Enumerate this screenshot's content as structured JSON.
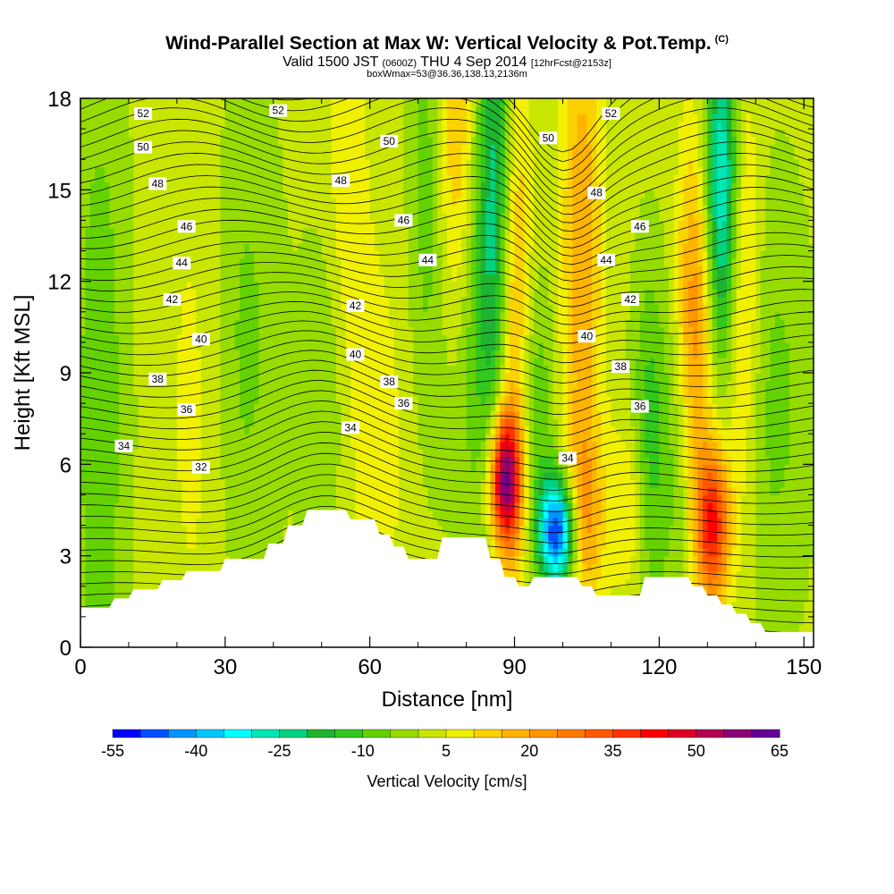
{
  "title": {
    "main": "Wind-Parallel Section at Max W: Vertical Velocity & Pot.Temp.",
    "copyright": "(C)",
    "valid_prefix": "Valid 1500 JST",
    "valid_utc": "(0600Z)",
    "valid_date": "THU 4 Sep 2014",
    "forecast": "[12hrFcst@2153z]",
    "box_info": "boxWmax=53@36.36,138.13,2136m"
  },
  "chart_data": {
    "type": "heatmap",
    "xlabel": "Distance [nm]",
    "ylabel": "Height [Kft MSL]",
    "xlim": [
      0,
      152
    ],
    "ylim": [
      0,
      18
    ],
    "x_ticks": [
      "0",
      "30",
      "60",
      "90",
      "120",
      "150"
    ],
    "y_ticks": [
      "0",
      "3",
      "6",
      "9",
      "12",
      "15",
      "18"
    ],
    "colorbar": {
      "label": "Vertical Velocity [cm/s]",
      "tick_labels": [
        "-55",
        "-40",
        "-25",
        "-10",
        "5",
        "20",
        "35",
        "50",
        "65"
      ],
      "levels": [
        -55,
        -50,
        -45,
        -40,
        -35,
        -30,
        -25,
        -20,
        -15,
        -10,
        -5,
        0,
        5,
        10,
        15,
        20,
        25,
        30,
        35,
        40,
        45,
        50,
        55,
        60,
        65
      ],
      "colors": [
        "#0000ff",
        "#0050ff",
        "#0096ff",
        "#00c8ff",
        "#00ffff",
        "#00e6b4",
        "#00d282",
        "#1eb432",
        "#32c81e",
        "#64d200",
        "#96dc00",
        "#c8e600",
        "#f0f000",
        "#fad200",
        "#ffb400",
        "#ff9600",
        "#ff7800",
        "#ff5a00",
        "#ff3200",
        "#ff0000",
        "#dc0028",
        "#b40050",
        "#8c0078",
        "#640096"
      ]
    },
    "theta_labels": [
      "52",
      "52",
      "52",
      "50",
      "50",
      "50",
      "48",
      "48",
      "48",
      "46",
      "46",
      "46",
      "44",
      "44",
      "44",
      "42",
      "42",
      "42",
      "40",
      "40",
      "40",
      "38",
      "38",
      "38",
      "36",
      "36",
      "36",
      "34",
      "34",
      "34",
      "32"
    ],
    "terrain": [
      [
        0,
        1.3
      ],
      [
        6,
        1.3
      ],
      [
        7,
        1.6
      ],
      [
        10,
        1.6
      ],
      [
        11,
        1.9
      ],
      [
        16,
        1.9
      ],
      [
        17,
        2.2
      ],
      [
        21,
        2.2
      ],
      [
        22,
        2.5
      ],
      [
        29,
        2.5
      ],
      [
        30,
        2.9
      ],
      [
        38,
        2.9
      ],
      [
        39,
        3.4
      ],
      [
        42,
        3.4
      ],
      [
        43,
        4.0
      ],
      [
        46,
        4.0
      ],
      [
        47,
        4.5
      ],
      [
        55,
        4.5
      ],
      [
        56,
        4.2
      ],
      [
        61,
        4.2
      ],
      [
        62,
        3.7
      ],
      [
        64,
        3.7
      ],
      [
        65,
        3.3
      ],
      [
        67,
        3.3
      ],
      [
        68,
        2.9
      ],
      [
        74,
        2.9
      ],
      [
        75,
        3.6
      ],
      [
        84,
        3.6
      ],
      [
        85,
        2.9
      ],
      [
        87,
        2.9
      ],
      [
        88,
        2.3
      ],
      [
        90,
        2.3
      ],
      [
        91,
        2.0
      ],
      [
        93,
        2.0
      ],
      [
        94,
        2.3
      ],
      [
        103,
        2.3
      ],
      [
        104,
        2.0
      ],
      [
        106,
        2.0
      ],
      [
        107,
        1.7
      ],
      [
        116,
        1.7
      ],
      [
        117,
        2.3
      ],
      [
        126,
        2.3
      ],
      [
        127,
        2.0
      ],
      [
        129,
        2.0
      ],
      [
        130,
        1.7
      ],
      [
        132,
        1.7
      ],
      [
        133,
        1.4
      ],
      [
        135,
        1.4
      ],
      [
        136,
        1.1
      ],
      [
        138,
        1.1
      ],
      [
        139,
        0.8
      ],
      [
        141,
        0.8
      ],
      [
        142,
        0.5
      ],
      [
        150,
        0.5
      ]
    ],
    "w_features": [
      {
        "x": 4,
        "y": 7.5,
        "sx": 4,
        "sy": 9,
        "w": -10
      },
      {
        "x": 24,
        "y": 8,
        "sx": 5,
        "sy": 7,
        "w": 5
      },
      {
        "x": 34,
        "y": 10,
        "sx": 5,
        "sy": 6,
        "w": -8
      },
      {
        "x": 52,
        "y": 8,
        "sx": 4,
        "sy": 4,
        "w": -10
      },
      {
        "x": 55,
        "y": 12,
        "sx": 3,
        "sy": 7,
        "w": 8
      },
      {
        "x": 62,
        "y": 7,
        "sx": 6,
        "sy": 6,
        "w": 5
      },
      {
        "x": 72,
        "y": 15,
        "sx": 3,
        "sy": 6,
        "w": -10
      },
      {
        "x": 78,
        "y": 16,
        "sx": 3,
        "sy": 5,
        "w": 18
      },
      {
        "x": 81,
        "y": 11,
        "sx": 4,
        "sy": 5,
        "w": -12
      },
      {
        "x": 86,
        "y": 15,
        "sx": 2.5,
        "sy": 6,
        "w": -22
      },
      {
        "x": 88,
        "y": 5.5,
        "sx": 2.2,
        "sy": 1.5,
        "w": 55
      },
      {
        "x": 90,
        "y": 10,
        "sx": 2.5,
        "sy": 6,
        "w": 20
      },
      {
        "x": 99,
        "y": 3.8,
        "sx": 2.8,
        "sy": 1.3,
        "w": -55
      },
      {
        "x": 94,
        "y": 8,
        "sx": 3,
        "sy": 3,
        "w": -12
      },
      {
        "x": 104,
        "y": 4.2,
        "sx": 3,
        "sy": 2,
        "w": 20
      },
      {
        "x": 104,
        "y": 13,
        "sx": 3,
        "sy": 6,
        "w": 18
      },
      {
        "x": 114,
        "y": 4.5,
        "sx": 3,
        "sy": 2,
        "w": 10
      },
      {
        "x": 118,
        "y": 6.5,
        "sx": 2.5,
        "sy": 4,
        "w": -15
      },
      {
        "x": 124,
        "y": 8,
        "sx": 2.5,
        "sy": 5,
        "w": -10
      },
      {
        "x": 127,
        "y": 11,
        "sx": 3,
        "sy": 4,
        "w": 25
      },
      {
        "x": 131,
        "y": 4,
        "sx": 2.5,
        "sy": 1.8,
        "w": 40
      },
      {
        "x": 133,
        "y": 15,
        "sx": 2.5,
        "sy": 4,
        "w": -35
      },
      {
        "x": 137,
        "y": 12,
        "sx": 2.5,
        "sy": 5,
        "w": 15
      },
      {
        "x": 144,
        "y": 8,
        "sx": 5,
        "sy": 5,
        "w": -8
      }
    ]
  }
}
